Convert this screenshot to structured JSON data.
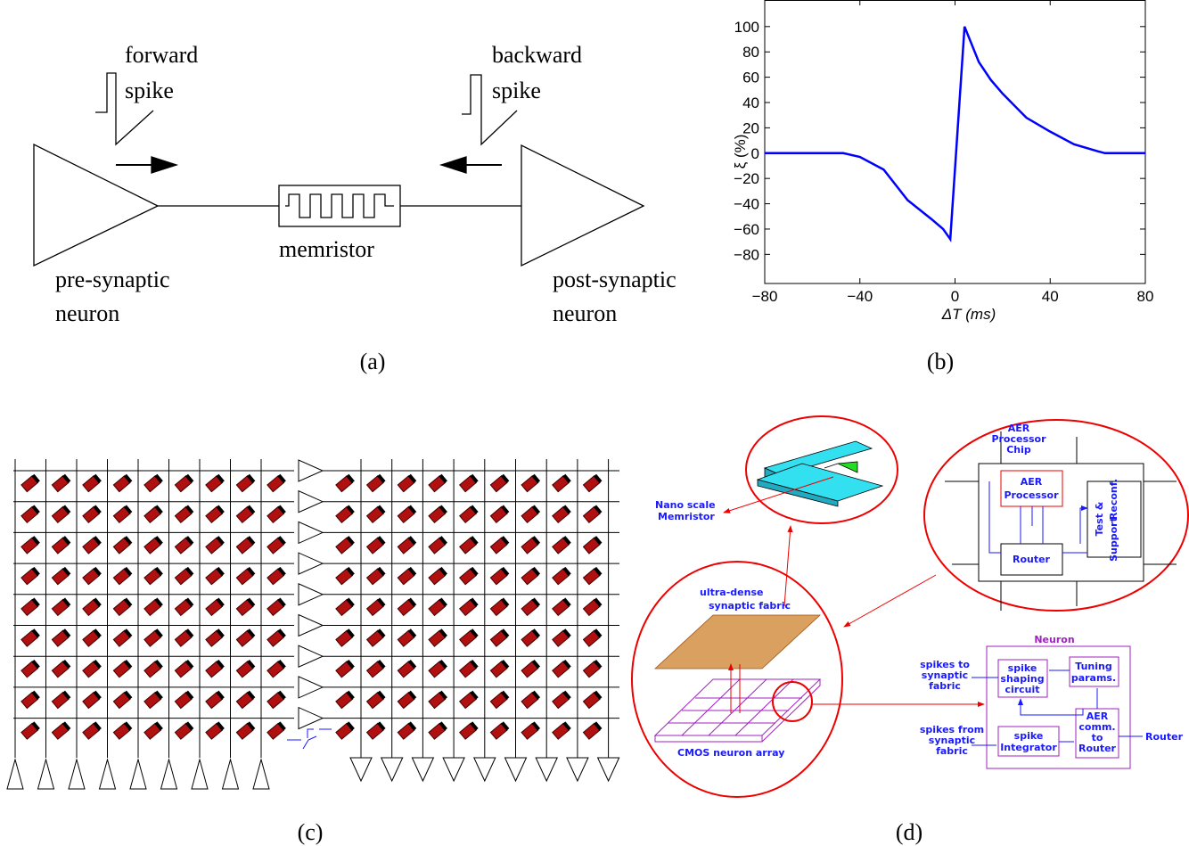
{
  "panel_a": {
    "forward_spike": [
      "forward",
      "spike"
    ],
    "backward_spike": [
      "backward",
      "spike"
    ],
    "memristor": "memristor",
    "pre_synaptic_neuron": [
      "pre-synaptic",
      "neuron"
    ],
    "post_synaptic_neuron": [
      "post-synaptic",
      "neuron"
    ],
    "caption": "(a)"
  },
  "chart_data": {
    "type": "line",
    "x_label": "ΔT (ms)",
    "y_label": "ξ (%)",
    "x": [
      -80,
      -47,
      -40,
      -30,
      -20,
      -10,
      -5,
      -2,
      4,
      10,
      15,
      20,
      30,
      40,
      50,
      60,
      63,
      80
    ],
    "values": [
      0,
      0,
      -3,
      -13,
      -37,
      -52,
      -60,
      -68,
      100,
      72,
      58,
      47,
      28,
      17,
      7,
      1.5,
      0,
      0
    ],
    "color": "#0000ff",
    "xlim": [
      -80,
      80
    ],
    "ylim": [
      -103,
      121
    ],
    "xticks": [
      {
        "value": -80,
        "label": "−80"
      },
      {
        "value": -40,
        "label": "−40"
      },
      0,
      40,
      80
    ],
    "yticks": [
      {
        "value": -80,
        "label": "−80"
      },
      {
        "value": -60,
        "label": "−60"
      },
      {
        "value": -40,
        "label": "−40"
      },
      {
        "value": -20,
        "label": "−20"
      },
      0,
      20,
      40,
      60,
      80,
      100
    ],
    "grid": false,
    "caption": "(b)"
  },
  "panel_c": {
    "caption": "(c)"
  },
  "panel_d": {
    "nano_memristor": [
      "Nano scale",
      "Memristor"
    ],
    "fabric": [
      "ultra-dense",
      "synaptic fabric"
    ],
    "cmos": "CMOS neuron array",
    "chip": [
      "AER",
      "Processor",
      "Chip"
    ],
    "processor": [
      "AER",
      "Processor"
    ],
    "support": [
      "Test &",
      "Reconf.",
      "Support"
    ],
    "chip_router": "Router",
    "neuron": "Neuron",
    "spikes_to": [
      "spikes to",
      "synaptic",
      "fabric"
    ],
    "shaping": [
      "spike",
      "shaping",
      "circuit"
    ],
    "tuning": [
      "Tuning",
      "params."
    ],
    "spikes_from": [
      "spikes from",
      "synaptic",
      "fabric"
    ],
    "integrator": [
      "spike",
      "Integrator"
    ],
    "aer_comm": [
      "AER",
      "comm.",
      "to",
      "Router"
    ],
    "router_out": "Router",
    "caption": "(d)"
  }
}
